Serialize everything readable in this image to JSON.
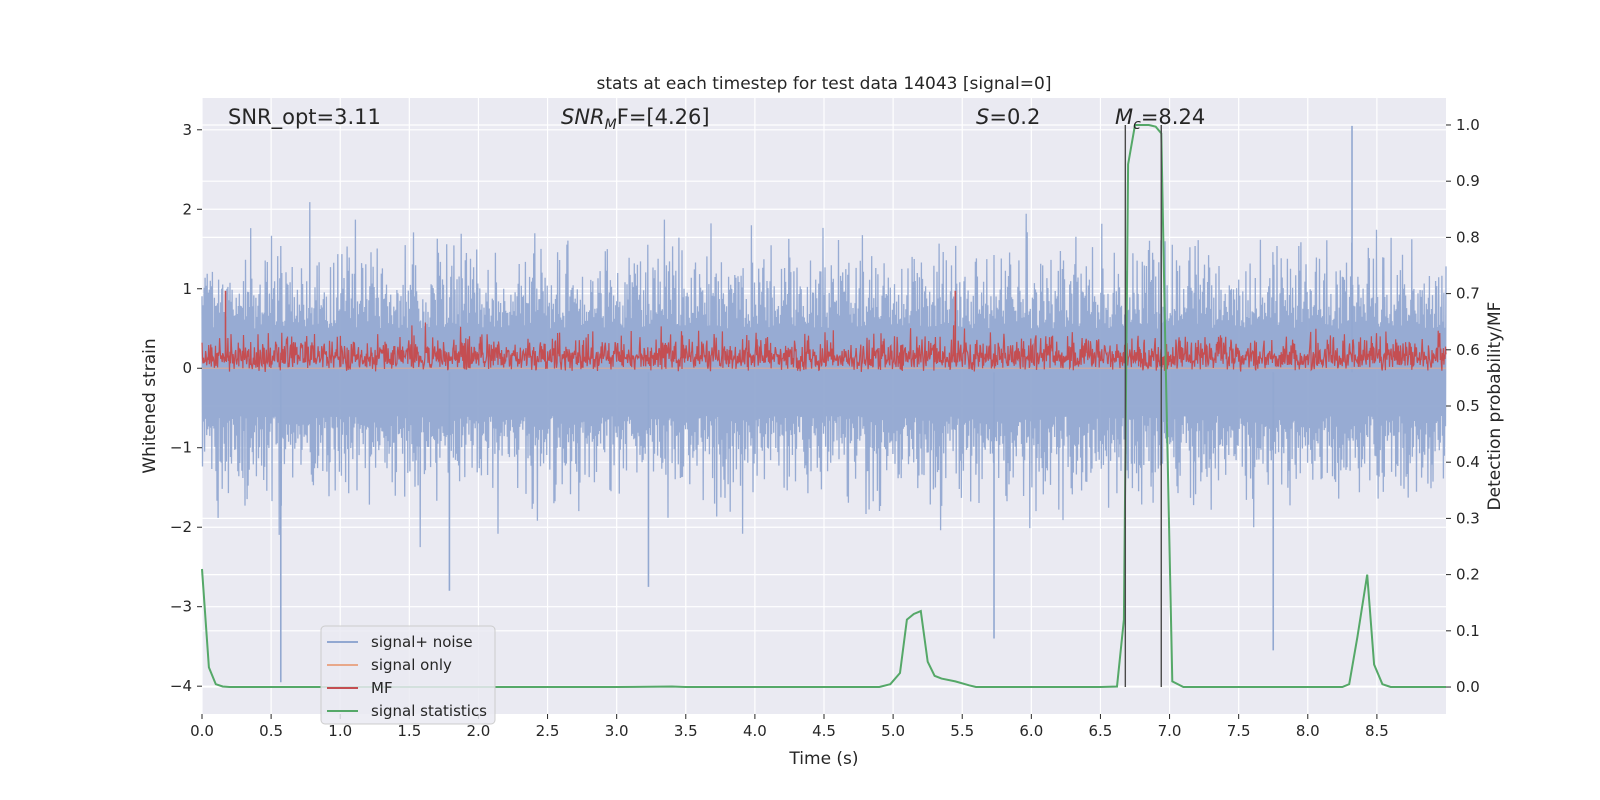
{
  "chart_data": {
    "type": "line",
    "title": "stats at each timestep for test data 14043 [signal=0]",
    "xlabel": "Time (s)",
    "ylabel": "Whitened strain",
    "ylabel_right": "Detection probability/MF",
    "xlim": [
      0,
      9.0
    ],
    "ylim": [
      -4.35,
      3.4
    ],
    "ylim_right": [
      -0.048,
      1.048
    ],
    "x_ticks": [
      0.0,
      0.5,
      1.0,
      1.5,
      2.0,
      2.5,
      3.0,
      3.5,
      4.0,
      4.5,
      5.0,
      5.5,
      6.0,
      6.5,
      7.0,
      7.5,
      8.0,
      8.5
    ],
    "x_tick_labels": [
      "0.0",
      "0.5",
      "1.0",
      "1.5",
      "2.0",
      "2.5",
      "3.0",
      "3.5",
      "4.0",
      "4.5",
      "5.0",
      "5.5",
      "6.0",
      "6.5",
      "7.0",
      "7.5",
      "8.0",
      "8.5"
    ],
    "y_ticks": [
      3,
      2,
      1,
      0,
      -1,
      -2,
      -3,
      -4
    ],
    "y_tick_labels": [
      "3",
      "2",
      "1",
      "0",
      "−1",
      "−2",
      "−3",
      "−4"
    ],
    "y_ticks_right": [
      1.0,
      0.9,
      0.8,
      0.7,
      0.6,
      0.5,
      0.4,
      0.3,
      0.2,
      0.1,
      0.0
    ],
    "y_tick_labels_right": [
      "1.0",
      "0.9",
      "0.8",
      "0.7",
      "0.6",
      "0.5",
      "0.4",
      "0.3",
      "0.2",
      "0.1",
      "0.0"
    ],
    "grid": true,
    "legend_position": "lower-left",
    "annotations": {
      "snr_opt": "SNR_opt=3.11",
      "snr_mf_base": "SNR",
      "snr_mf_sub": "M",
      "snr_mf_rest": "F=[4.26]",
      "s_base": "S",
      "s_rest": "=0.2",
      "mc_base": "M",
      "mc_sub": "c",
      "mc_rest": "=8.24"
    },
    "vertical_lines_x": [
      6.68,
      6.94
    ],
    "series": [
      {
        "name": "signal+ noise",
        "color": "#92a8d1",
        "axis": "left",
        "noise_center": -0.05,
        "noise_amplitude": 1.9,
        "notable_spikes": [
          {
            "x": 0.57,
            "y": -3.95
          },
          {
            "x": 1.79,
            "y": -2.8
          },
          {
            "x": 3.23,
            "y": -2.75
          },
          {
            "x": 5.73,
            "y": -3.4
          },
          {
            "x": 7.75,
            "y": -3.55
          },
          {
            "x": 8.32,
            "y": 3.05
          }
        ]
      },
      {
        "name": "signal only",
        "color": "#e8a88a",
        "axis": "left",
        "values_constant": 0
      },
      {
        "name": "MF",
        "color": "#c44e52",
        "axis": "right",
        "baseline": 0.56,
        "amplitude_range": [
          0.56,
          0.72
        ],
        "notable_peaks": [
          {
            "x": 0.17,
            "y": 0.705
          },
          {
            "x": 5.45,
            "y": 0.705
          }
        ]
      },
      {
        "name": "signal statistics",
        "color": "#55a868",
        "axis": "right",
        "x": [
          0.0,
          0.05,
          0.1,
          0.15,
          0.2,
          0.3,
          0.5,
          1.0,
          2.0,
          3.0,
          3.4,
          3.5,
          4.0,
          4.5,
          4.9,
          4.98,
          5.05,
          5.1,
          5.15,
          5.2,
          5.25,
          5.3,
          5.35,
          5.45,
          5.55,
          5.6,
          6.0,
          6.5,
          6.62,
          6.67,
          6.7,
          6.75,
          6.8,
          6.85,
          6.9,
          6.94,
          6.97,
          7.02,
          7.1,
          7.3,
          8.0,
          8.25,
          8.3,
          8.36,
          8.43,
          8.48,
          8.54,
          8.6,
          8.8,
          9.0
        ],
        "y": [
          0.21,
          0.035,
          0.005,
          0.001,
          0.0,
          0.0,
          0.0,
          0.0,
          0.0,
          0.0,
          0.001,
          0.0,
          0.0,
          0.0,
          0.0,
          0.005,
          0.025,
          0.12,
          0.13,
          0.135,
          0.045,
          0.02,
          0.015,
          0.01,
          0.003,
          0.0,
          0.0,
          0.0,
          0.001,
          0.12,
          0.93,
          1.0,
          1.0,
          1.0,
          0.997,
          0.985,
          0.6,
          0.01,
          0.0,
          0.0,
          0.0,
          0.0,
          0.005,
          0.09,
          0.2,
          0.04,
          0.005,
          0.0,
          0.0,
          0.0
        ]
      }
    ]
  }
}
